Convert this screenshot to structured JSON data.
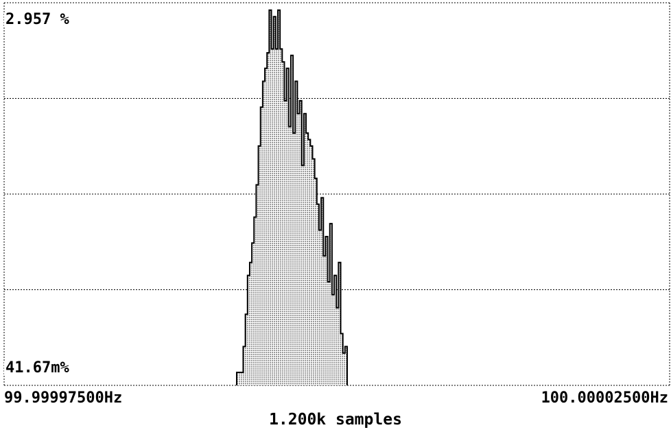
{
  "chart_data": {
    "type": "bar",
    "title": "",
    "y_max_label": "2.957 %",
    "y_min_label": "41.67m%",
    "x_min_label": "99.99997500Hz",
    "x_max_label": "100.00002500Hz",
    "sample_count_label": "1.200k samples",
    "grid": true,
    "x_range_hz": [
      99.999975,
      100.000025
    ],
    "y_range_percent": [
      0.04167,
      2.957
    ],
    "fill_color": "#d0d0d0",
    "line_color": "#000000",
    "bins_percent": [
      0.1,
      0.1,
      0.1,
      0.3,
      0.55,
      0.85,
      0.95,
      1.1,
      1.3,
      1.55,
      1.85,
      2.15,
      2.35,
      2.45,
      2.57,
      2.9,
      2.6,
      2.85,
      2.6,
      2.9,
      2.6,
      2.5,
      2.2,
      2.45,
      2.0,
      2.55,
      1.95,
      2.35,
      2.1,
      2.2,
      1.7,
      2.1,
      1.95,
      1.9,
      1.85,
      1.75,
      1.6,
      1.4,
      1.2,
      1.45,
      1.0,
      1.15,
      0.8,
      1.25,
      0.7,
      0.85,
      0.6,
      0.95,
      0.4,
      0.25,
      0.3
    ]
  }
}
